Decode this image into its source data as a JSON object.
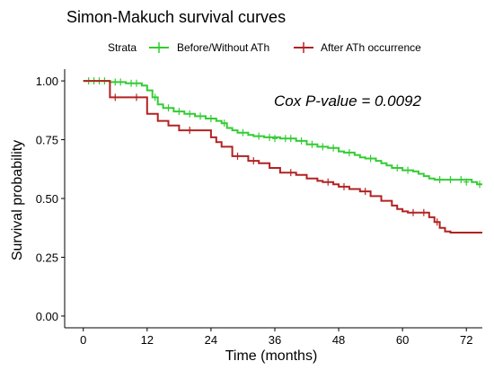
{
  "chart_data": {
    "type": "line",
    "title": "Simon-Makuch survival curves",
    "xlabel": "Time (months)",
    "ylabel": "Survival probability",
    "xlim": [
      -3.5,
      75
    ],
    "ylim": [
      -0.05,
      1.05
    ],
    "xticks": [
      0,
      12,
      24,
      36,
      48,
      60,
      72
    ],
    "yticks": [
      0.0,
      0.25,
      0.5,
      0.75,
      1.0
    ],
    "ytick_labels": [
      "0.00",
      "0.25",
      "0.50",
      "0.75",
      "1.00"
    ],
    "legend": {
      "title": "Strata",
      "position": "top"
    },
    "annotation": "Cox P-value = 0.0092",
    "grid": false,
    "series": [
      {
        "name": "Before/Without ATh",
        "color": "#33cc33",
        "steps": [
          [
            0,
            1.0
          ],
          [
            5,
            0.995
          ],
          [
            8,
            0.99
          ],
          [
            11,
            0.98
          ],
          [
            12,
            0.96
          ],
          [
            13,
            0.93
          ],
          [
            14,
            0.9
          ],
          [
            15,
            0.885
          ],
          [
            17,
            0.87
          ],
          [
            19,
            0.86
          ],
          [
            21,
            0.85
          ],
          [
            23,
            0.84
          ],
          [
            25,
            0.83
          ],
          [
            26,
            0.82
          ],
          [
            27,
            0.8
          ],
          [
            28,
            0.79
          ],
          [
            29,
            0.78
          ],
          [
            31,
            0.77
          ],
          [
            32,
            0.765
          ],
          [
            34,
            0.76
          ],
          [
            37,
            0.755
          ],
          [
            40,
            0.745
          ],
          [
            42,
            0.73
          ],
          [
            44,
            0.72
          ],
          [
            46,
            0.715
          ],
          [
            48,
            0.7
          ],
          [
            49,
            0.695
          ],
          [
            51,
            0.685
          ],
          [
            52,
            0.675
          ],
          [
            53,
            0.67
          ],
          [
            55,
            0.66
          ],
          [
            56,
            0.65
          ],
          [
            57,
            0.64
          ],
          [
            58,
            0.63
          ],
          [
            60,
            0.62
          ],
          [
            62,
            0.615
          ],
          [
            63,
            0.605
          ],
          [
            64,
            0.595
          ],
          [
            65,
            0.585
          ],
          [
            66,
            0.58
          ],
          [
            73,
            0.57
          ],
          [
            74,
            0.56
          ],
          [
            75,
            0.56
          ]
        ],
        "censors": [
          [
            1,
            1.0
          ],
          [
            2,
            1.0
          ],
          [
            3,
            1.0
          ],
          [
            4,
            1.0
          ],
          [
            6,
            0.995
          ],
          [
            7,
            0.995
          ],
          [
            9,
            0.99
          ],
          [
            10,
            0.99
          ],
          [
            13.5,
            0.93
          ],
          [
            16,
            0.885
          ],
          [
            18,
            0.87
          ],
          [
            20,
            0.86
          ],
          [
            22,
            0.85
          ],
          [
            24,
            0.84
          ],
          [
            26.5,
            0.82
          ],
          [
            30,
            0.78
          ],
          [
            33,
            0.765
          ],
          [
            35,
            0.76
          ],
          [
            36,
            0.755
          ],
          [
            38,
            0.755
          ],
          [
            39,
            0.755
          ],
          [
            41,
            0.745
          ],
          [
            43,
            0.73
          ],
          [
            45,
            0.72
          ],
          [
            47,
            0.715
          ],
          [
            50,
            0.695
          ],
          [
            54,
            0.67
          ],
          [
            59,
            0.63
          ],
          [
            61,
            0.62
          ],
          [
            67,
            0.58
          ],
          [
            69,
            0.58
          ],
          [
            71,
            0.58
          ],
          [
            72,
            0.57
          ],
          [
            74.5,
            0.56
          ]
        ]
      },
      {
        "name": "After ATh occurrence",
        "color": "#b22222",
        "steps": [
          [
            0,
            1.0
          ],
          [
            5,
            0.93
          ],
          [
            12,
            0.86
          ],
          [
            14,
            0.83
          ],
          [
            16,
            0.81
          ],
          [
            18,
            0.79
          ],
          [
            24,
            0.76
          ],
          [
            25,
            0.74
          ],
          [
            26,
            0.72
          ],
          [
            28,
            0.68
          ],
          [
            31,
            0.66
          ],
          [
            33,
            0.65
          ],
          [
            35,
            0.63
          ],
          [
            37,
            0.61
          ],
          [
            40,
            0.6
          ],
          [
            42,
            0.585
          ],
          [
            44,
            0.575
          ],
          [
            45,
            0.57
          ],
          [
            47,
            0.56
          ],
          [
            48,
            0.55
          ],
          [
            50,
            0.54
          ],
          [
            52,
            0.53
          ],
          [
            54,
            0.51
          ],
          [
            56,
            0.49
          ],
          [
            58,
            0.47
          ],
          [
            59,
            0.455
          ],
          [
            60,
            0.445
          ],
          [
            61,
            0.44
          ],
          [
            65,
            0.42
          ],
          [
            66,
            0.4
          ],
          [
            67,
            0.375
          ],
          [
            68,
            0.36
          ],
          [
            69,
            0.355
          ],
          [
            75,
            0.355
          ]
        ],
        "censors": [
          [
            6,
            0.93
          ],
          [
            10,
            0.93
          ],
          [
            20,
            0.79
          ],
          [
            29,
            0.68
          ],
          [
            32,
            0.66
          ],
          [
            39,
            0.61
          ],
          [
            46,
            0.57
          ],
          [
            49,
            0.55
          ],
          [
            53,
            0.53
          ],
          [
            62,
            0.44
          ],
          [
            64,
            0.44
          ],
          [
            66.5,
            0.4
          ]
        ]
      }
    ]
  }
}
